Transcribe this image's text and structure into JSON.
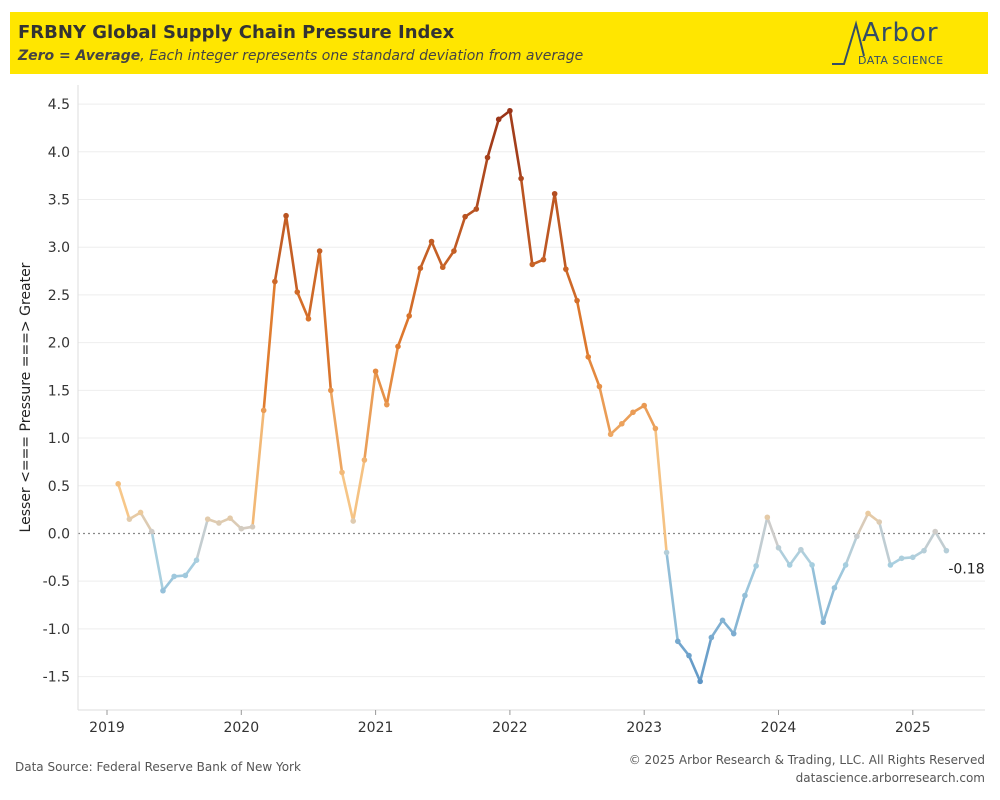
{
  "header": {
    "title": "FRBNY Global Supply Chain Pressure Index",
    "subtitle_bold": "Zero = Average",
    "subtitle_rest": ", Each integer represents one standard deviation from average",
    "logo_name": "Arbor",
    "logo_sub": "DATA SCIENCE"
  },
  "footer": {
    "source": "Data Source: Federal Reserve Bank of New York",
    "copyright": "© 2025 Arbor Research & Trading, LLC. All Rights Reserved",
    "website": "datascience.arborresearch.com"
  },
  "colors": {
    "banner": "#ffe600",
    "high": "#9a3418",
    "mid_high": "#e07b2e",
    "low_pos": "#f7c98b",
    "neutral": "#cccccc",
    "low_neg": "#a8cfe0",
    "deep_neg": "#5b93c4",
    "zero_line": "#888888"
  },
  "chart_data": {
    "type": "line",
    "title": "FRBNY Global Supply Chain Pressure Index",
    "ylabel": "Lesser <=== Pressure ===> Greater",
    "xlabel": "",
    "ylim": [
      -1.85,
      4.7
    ],
    "yticks": [
      -1.5,
      -1.0,
      -0.5,
      0.0,
      0.5,
      1.0,
      1.5,
      2.0,
      2.5,
      3.0,
      3.5,
      4.0,
      4.5
    ],
    "ytick_labels": [
      "-1.5",
      "-1.0",
      "-0.5",
      "0.0",
      "0.5",
      "1.0",
      "1.5",
      "2.0",
      "2.5",
      "3.0",
      "3.5",
      "4.0",
      "4.5"
    ],
    "xticks": [
      "2019",
      "2020",
      "2021",
      "2022",
      "2023",
      "2024",
      "2025"
    ],
    "grid": "horizontal",
    "zero_line": "dotted",
    "last_value_label": "-0.18",
    "start": "2019-02",
    "series": [
      {
        "values": [
          0.52,
          0.15,
          0.22,
          0.02,
          -0.6,
          -0.45,
          -0.44,
          -0.28,
          0.15,
          0.11,
          0.16,
          0.05,
          0.07,
          1.29,
          2.64,
          3.33,
          2.53,
          2.25,
          2.96,
          1.5,
          0.64,
          0.13,
          0.77,
          1.7,
          1.35,
          1.96,
          2.28,
          2.78,
          3.06,
          2.79,
          2.96,
          3.32,
          3.4,
          3.94,
          4.34,
          4.43,
          3.72,
          2.82,
          2.87,
          3.56,
          2.77,
          2.44,
          1.85,
          1.54,
          1.04,
          1.15,
          1.27,
          1.34,
          1.1,
          -0.2,
          -1.13,
          -1.28,
          -1.55,
          -1.09,
          -0.91,
          -1.05,
          -0.65,
          -0.34,
          0.17,
          -0.15,
          -0.33,
          -0.17,
          -0.33,
          -0.93,
          -0.57,
          -0.33,
          -0.03,
          0.21,
          0.12,
          -0.33,
          -0.26,
          -0.25,
          -0.18,
          0.02,
          -0.18
        ]
      }
    ]
  }
}
